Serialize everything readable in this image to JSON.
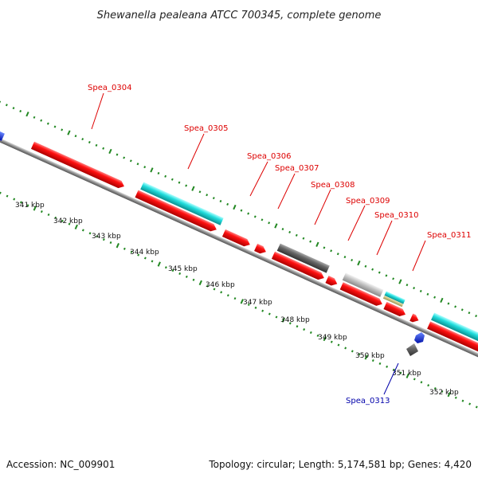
{
  "title": "Shewanella pealeana ATCC 700345, complete genome",
  "footer": {
    "accession": "Accession: NC_009901",
    "summary": "Topology: circular; Length: 5,174,581 bp; Genes: 4,420"
  },
  "colors": {
    "forward_label": "#dd0000",
    "reverse_label": "#0000aa",
    "red_cds": "#ee0000",
    "cyan_cds": "#22cccc",
    "gray_dark": "#666666",
    "gray_light": "#bbbbbb",
    "olive": "#c8c070",
    "blue_cds": "#1133ee",
    "backbone": "#888888",
    "dots": "#228822"
  },
  "scale_ticks": [
    {
      "label": "341 kbp",
      "kbp": 341
    },
    {
      "label": "342 kbp",
      "kbp": 342
    },
    {
      "label": "343 kbp",
      "kbp": 343
    },
    {
      "label": "344 kbp",
      "kbp": 344
    },
    {
      "label": "345 kbp",
      "kbp": 345
    },
    {
      "label": "346 kbp",
      "kbp": 346
    },
    {
      "label": "347 kbp",
      "kbp": 347
    },
    {
      "label": "348 kbp",
      "kbp": 348
    },
    {
      "label": "349 kbp",
      "kbp": 349
    },
    {
      "label": "350 kbp",
      "kbp": 350
    },
    {
      "label": "351 kbp",
      "kbp": 351
    },
    {
      "label": "352 kbp",
      "kbp": 352
    }
  ],
  "gene_labels": [
    {
      "name": "Spea_0304",
      "strand": "forward"
    },
    {
      "name": "Spea_0305",
      "strand": "forward"
    },
    {
      "name": "Spea_0306",
      "strand": "forward"
    },
    {
      "name": "Spea_0307",
      "strand": "forward"
    },
    {
      "name": "Spea_0308",
      "strand": "forward"
    },
    {
      "name": "Spea_0309",
      "strand": "forward"
    },
    {
      "name": "Spea_0310",
      "strand": "forward"
    },
    {
      "name": "Spea_0311",
      "strand": "forward"
    },
    {
      "name": "Spea_0313",
      "strand": "reverse"
    }
  ]
}
